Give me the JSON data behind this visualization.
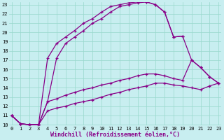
{
  "xlabel": "Windchill (Refroidissement éolien,°C)",
  "bg_color": "#c8eef0",
  "grid_color": "#98d8cc",
  "line_color": "#880088",
  "xmin": 0,
  "xmax": 23,
  "ymin": 10,
  "ymax": 23,
  "xticks": [
    0,
    1,
    2,
    3,
    4,
    5,
    6,
    7,
    8,
    9,
    10,
    11,
    12,
    13,
    14,
    15,
    16,
    17,
    18,
    19,
    20,
    21,
    22,
    23
  ],
  "yticks": [
    10,
    11,
    12,
    13,
    14,
    15,
    16,
    17,
    18,
    19,
    20,
    21,
    22,
    23
  ],
  "series": [
    [
      11.0,
      10.1,
      10.0,
      10.0,
      17.2,
      18.8,
      19.5,
      20.2,
      21.0,
      21.5,
      22.2,
      22.8,
      23.0,
      23.2,
      23.3,
      23.3,
      23.0,
      22.2,
      19.5,
      19.6,
      null,
      null,
      null,
      null
    ],
    [
      11.0,
      10.1,
      10.0,
      10.0,
      12.5,
      17.2,
      18.8,
      19.5,
      20.2,
      21.0,
      21.5,
      22.2,
      22.8,
      23.0,
      23.2,
      23.3,
      23.0,
      22.2,
      19.5,
      19.6,
      17.0,
      16.2,
      15.2,
      14.5
    ],
    [
      11.0,
      10.1,
      10.0,
      10.0,
      12.5,
      12.8,
      13.2,
      13.5,
      13.8,
      14.0,
      14.3,
      14.5,
      14.8,
      15.0,
      15.3,
      15.5,
      15.5,
      15.3,
      15.0,
      14.8,
      17.0,
      16.2,
      15.2,
      14.5
    ],
    [
      11.0,
      10.1,
      10.0,
      10.0,
      11.5,
      11.8,
      12.0,
      12.3,
      12.5,
      12.7,
      13.0,
      13.3,
      13.5,
      13.8,
      14.0,
      14.2,
      14.5,
      14.5,
      14.3,
      14.2,
      14.0,
      13.8,
      14.2,
      14.5
    ]
  ]
}
